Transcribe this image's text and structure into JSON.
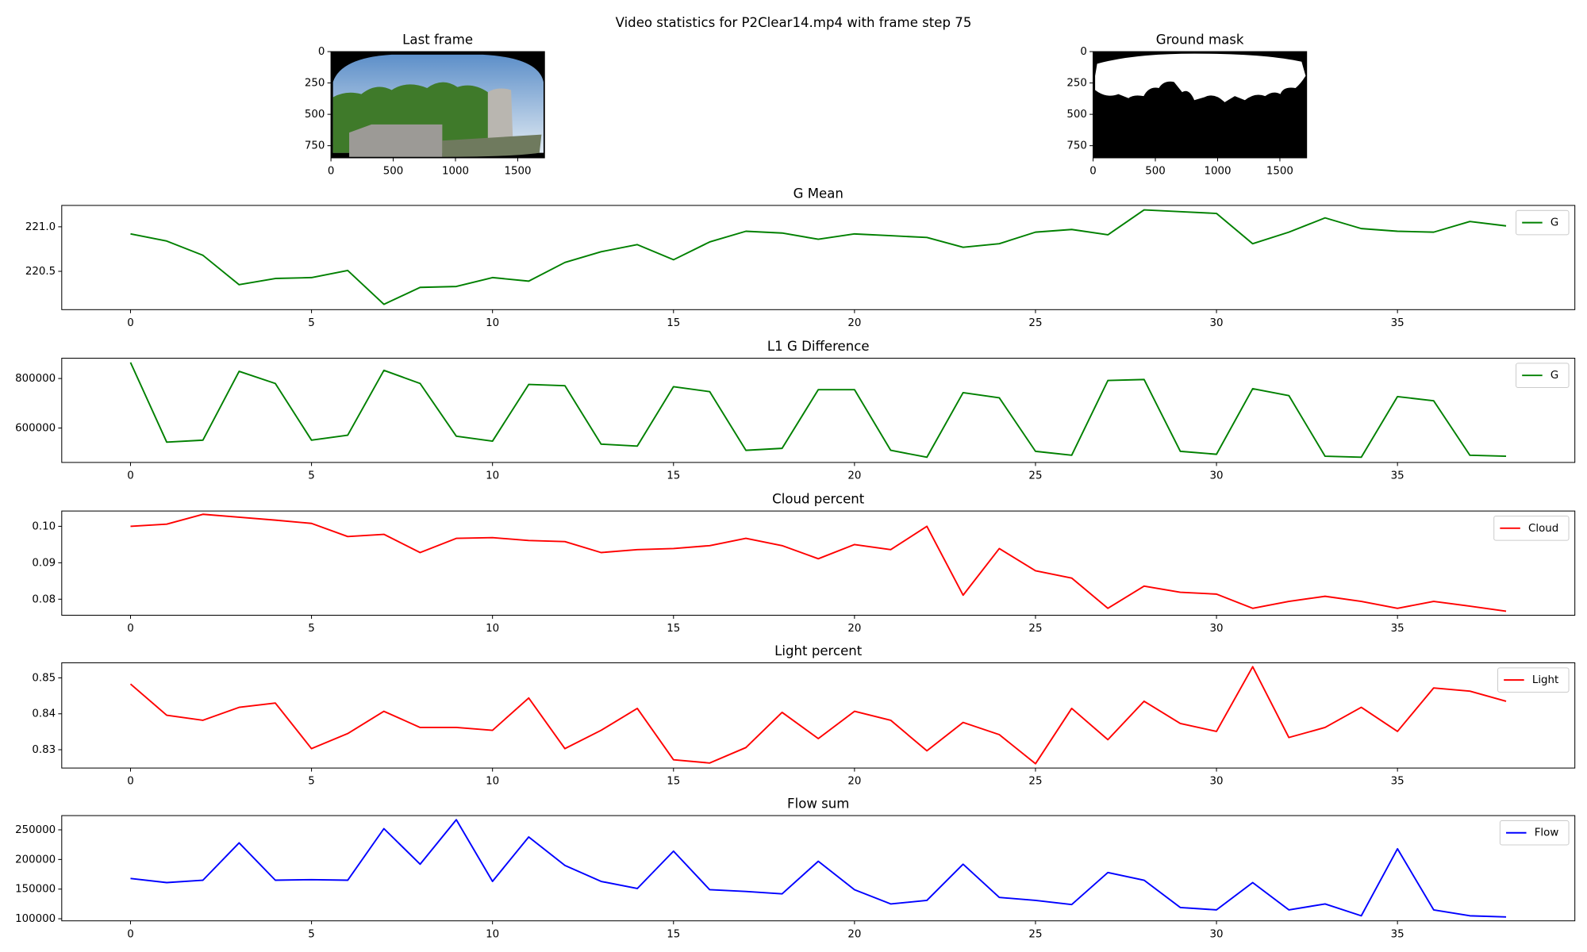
{
  "title": "Video statistics for P2Clear14.mp4 with frame step 75",
  "chart_data": [
    {
      "type": "image",
      "title": "Last frame",
      "xlim": [
        0,
        1715
      ],
      "ylim": [
        847,
        0
      ],
      "xticks": [
        0,
        500,
        1000,
        1500
      ],
      "yticks": [
        0,
        250,
        500,
        750
      ]
    },
    {
      "type": "image",
      "title": "Ground mask",
      "xlim": [
        0,
        1715
      ],
      "ylim": [
        847,
        0
      ],
      "xticks": [
        0,
        500,
        1000,
        1500
      ],
      "yticks": [
        0,
        250,
        500,
        750
      ]
    },
    {
      "type": "line",
      "title": "G Mean",
      "legend": "upper right",
      "x": [
        0,
        1,
        2,
        3,
        4,
        5,
        6,
        7,
        8,
        9,
        10,
        11,
        12,
        13,
        14,
        15,
        16,
        17,
        18,
        19,
        20,
        21,
        22,
        23,
        24,
        25,
        26,
        27,
        28,
        29,
        30,
        31,
        32,
        33,
        34,
        35,
        36,
        37,
        38
      ],
      "series": [
        {
          "name": "G",
          "color": "#008000",
          "values": [
            220.92,
            220.84,
            220.68,
            220.35,
            220.42,
            220.43,
            220.51,
            220.13,
            220.32,
            220.33,
            220.43,
            220.39,
            220.6,
            220.72,
            220.8,
            220.63,
            220.83,
            220.95,
            220.93,
            220.86,
            220.92,
            220.9,
            220.88,
            220.77,
            220.81,
            220.94,
            220.97,
            220.91,
            221.19,
            221.17,
            221.15,
            220.81,
            220.94,
            221.1,
            220.98,
            220.95,
            220.94,
            221.06,
            221.01
          ]
        }
      ],
      "xlim": [
        -1.9,
        39.9
      ],
      "ylim": [
        220.07,
        221.24
      ],
      "xticks": [
        0,
        5,
        10,
        15,
        20,
        25,
        30,
        35
      ],
      "yticks": [
        220.5,
        {
          "value": 221,
          "label": "221.0"
        }
      ]
    },
    {
      "type": "line",
      "title": "L1 G Difference",
      "legend": "upper right",
      "x": [
        0,
        1,
        2,
        3,
        4,
        5,
        6,
        7,
        8,
        9,
        10,
        11,
        12,
        13,
        14,
        15,
        16,
        17,
        18,
        19,
        20,
        21,
        22,
        23,
        24,
        25,
        26,
        27,
        28,
        29,
        30,
        31,
        32,
        33,
        34,
        35,
        36,
        37,
        38
      ],
      "series": [
        {
          "name": "G",
          "color": "#008000",
          "values": [
            865000,
            543000,
            551000,
            829000,
            780000,
            551000,
            571000,
            833000,
            780000,
            567000,
            547000,
            776000,
            771000,
            535000,
            527000,
            767000,
            747000,
            510000,
            518000,
            755000,
            755000,
            510000,
            482000,
            743000,
            722000,
            506000,
            490000,
            792000,
            796000,
            506000,
            494000,
            759000,
            731000,
            486000,
            482000,
            727000,
            710000,
            490000,
            486000
          ]
        }
      ],
      "xlim": [
        -1.9,
        39.9
      ],
      "ylim": [
        461000,
        882000
      ],
      "xticks": [
        0,
        5,
        10,
        15,
        20,
        25,
        30,
        35
      ],
      "yticks": [
        600000,
        800000
      ]
    },
    {
      "type": "line",
      "title": "Cloud percent",
      "legend": "upper right",
      "x": [
        0,
        1,
        2,
        3,
        4,
        5,
        6,
        7,
        8,
        9,
        10,
        11,
        12,
        13,
        14,
        15,
        16,
        17,
        18,
        19,
        20,
        21,
        22,
        23,
        24,
        25,
        26,
        27,
        28,
        29,
        30,
        31,
        32,
        33,
        34,
        35,
        36,
        37,
        38
      ],
      "series": [
        {
          "name": "Cloud",
          "color": "#ff0000",
          "values": [
            0.1,
            0.1006,
            0.1033,
            0.1025,
            0.1017,
            0.1008,
            0.0972,
            0.0978,
            0.0928,
            0.0967,
            0.0969,
            0.0961,
            0.0958,
            0.0928,
            0.0936,
            0.0939,
            0.0947,
            0.0967,
            0.0947,
            0.0911,
            0.095,
            0.0936,
            0.1,
            0.0811,
            0.0939,
            0.0878,
            0.0858,
            0.0775,
            0.0836,
            0.0819,
            0.0814,
            0.0775,
            0.0794,
            0.0808,
            0.0794,
            0.0775,
            0.0794,
            0.0781,
            0.0767
          ]
        }
      ],
      "xlim": [
        -1.9,
        39.9
      ],
      "ylim": [
        0.0756,
        0.1042
      ],
      "xticks": [
        0,
        5,
        10,
        15,
        20,
        25,
        30,
        35
      ],
      "yticks": [
        0.08,
        0.09,
        {
          "value": 0.1,
          "label": "0.10"
        }
      ]
    },
    {
      "type": "line",
      "title": "Light percent",
      "legend": "upper right",
      "x": [
        0,
        1,
        2,
        3,
        4,
        5,
        6,
        7,
        8,
        9,
        10,
        11,
        12,
        13,
        14,
        15,
        16,
        17,
        18,
        19,
        20,
        21,
        22,
        23,
        24,
        25,
        26,
        27,
        28,
        29,
        30,
        31,
        32,
        33,
        34,
        35,
        36,
        37,
        38
      ],
      "series": [
        {
          "name": "Light",
          "color": "#ff0000",
          "values": [
            0.8483,
            0.8396,
            0.8382,
            0.8418,
            0.843,
            0.8303,
            0.8345,
            0.8407,
            0.8362,
            0.8362,
            0.8354,
            0.8444,
            0.8303,
            0.8354,
            0.8415,
            0.8272,
            0.8263,
            0.8306,
            0.8404,
            0.8331,
            0.8407,
            0.8382,
            0.8297,
            0.8376,
            0.8342,
            0.8261,
            0.8415,
            0.8328,
            0.8435,
            0.8373,
            0.8351,
            0.8531,
            0.8334,
            0.8362,
            0.8418,
            0.8351,
            0.8472,
            0.8463,
            0.8435
          ]
        }
      ],
      "xlim": [
        -1.9,
        39.9
      ],
      "ylim": [
        0.8249,
        0.8542
      ],
      "xticks": [
        0,
        5,
        10,
        15,
        20,
        25,
        30,
        35
      ],
      "yticks": [
        0.83,
        0.84,
        0.85
      ]
    },
    {
      "type": "line",
      "title": "Flow sum",
      "legend": "upper right",
      "x": [
        0,
        1,
        2,
        3,
        4,
        5,
        6,
        7,
        8,
        9,
        10,
        11,
        12,
        13,
        14,
        15,
        16,
        17,
        18,
        19,
        20,
        21,
        22,
        23,
        24,
        25,
        26,
        27,
        28,
        29,
        30,
        31,
        32,
        33,
        34,
        35,
        36,
        37,
        38
      ],
      "series": [
        {
          "name": "Flow",
          "color": "#0000ff",
          "values": [
            168000,
            161000,
            165000,
            228000,
            165000,
            166000,
            165000,
            252000,
            192000,
            267000,
            163000,
            238000,
            190000,
            163000,
            151000,
            214000,
            149000,
            146000,
            142000,
            197000,
            149000,
            125000,
            131000,
            192000,
            136000,
            131000,
            124000,
            178000,
            165000,
            119000,
            115000,
            161000,
            115000,
            125000,
            105000,
            218000,
            115000,
            105000,
            103000
          ]
        }
      ],
      "xlim": [
        -1.9,
        39.9
      ],
      "ylim": [
        96500,
        274000
      ],
      "xticks": [
        0,
        5,
        10,
        15,
        20,
        25,
        30,
        35
      ],
      "yticks": [
        100000,
        150000,
        200000,
        250000
      ]
    }
  ]
}
